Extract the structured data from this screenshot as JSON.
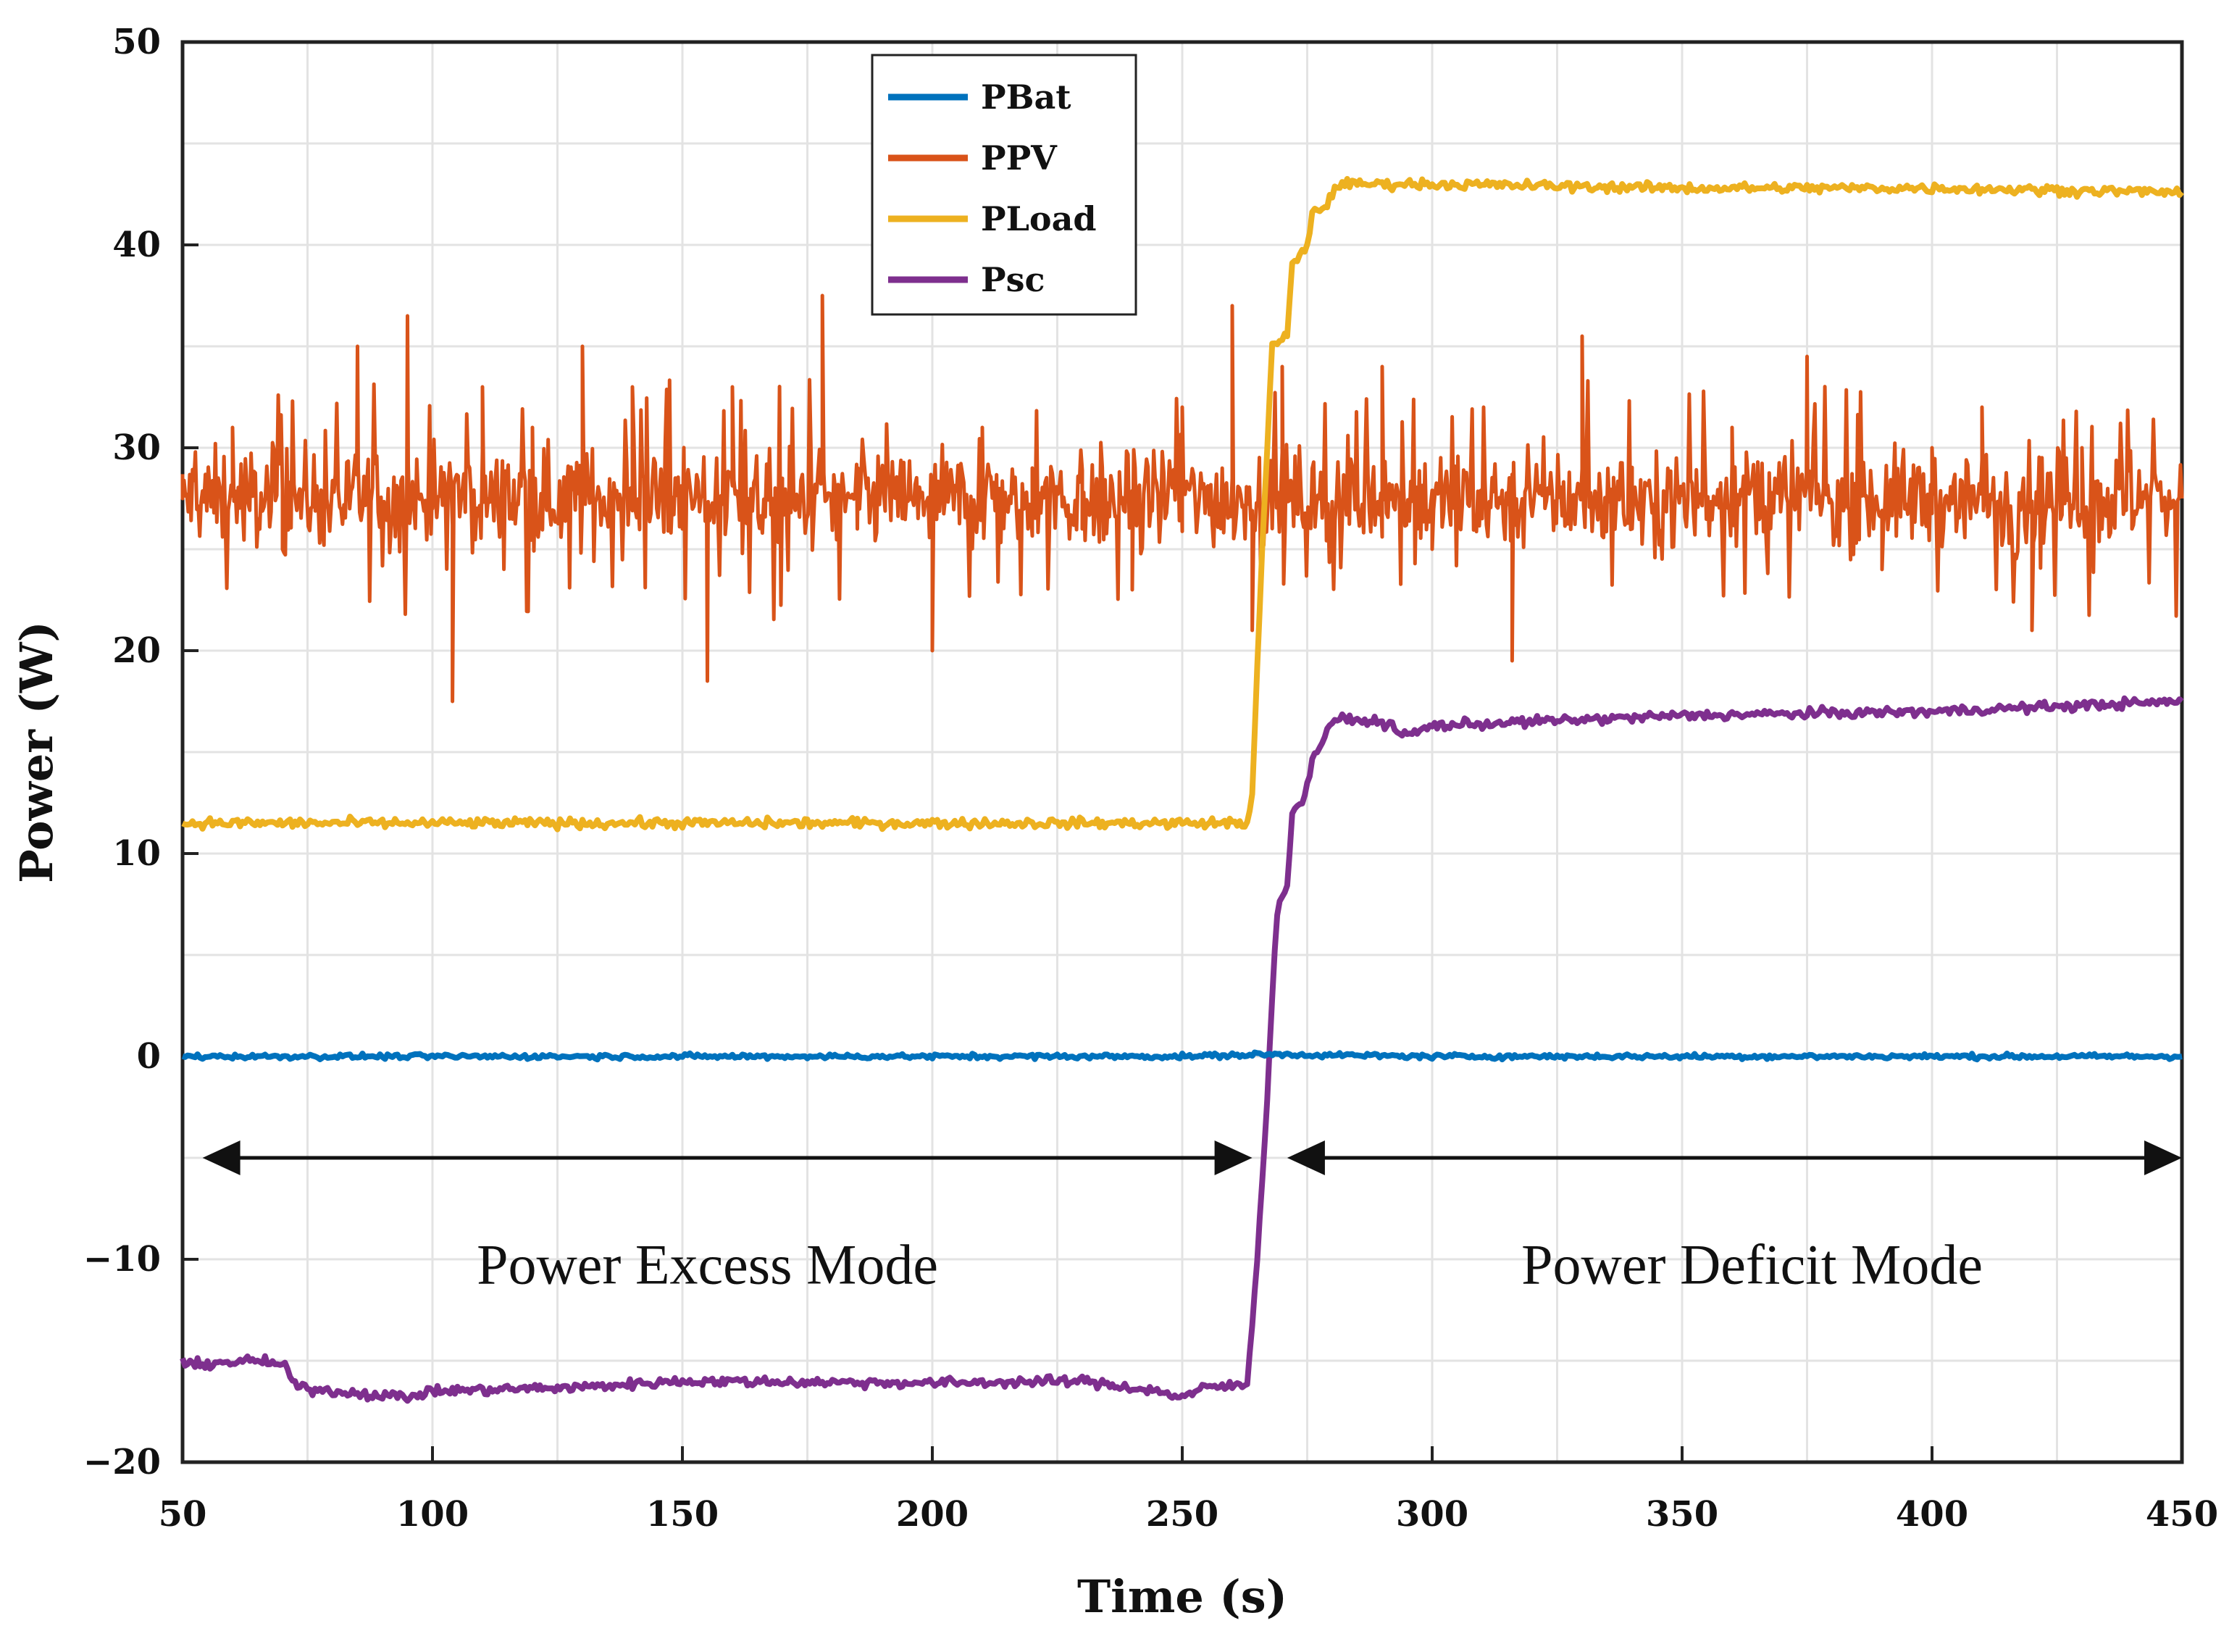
{
  "chart_data": {
    "type": "line",
    "title": "",
    "xlabel": "Time (s)",
    "ylabel": "Power (W)",
    "xlim": [
      50,
      450
    ],
    "ylim": [
      -20,
      50
    ],
    "xticks": [
      50,
      100,
      150,
      200,
      250,
      300,
      350,
      400,
      450
    ],
    "yticks": [
      -20,
      -10,
      0,
      10,
      20,
      30,
      40,
      50
    ],
    "xtick_labels": [
      "50",
      "100",
      "150",
      "200",
      "250",
      "300",
      "350",
      "400",
      "450"
    ],
    "ytick_labels": [
      "−20",
      "−10",
      "0",
      "10",
      "20",
      "30",
      "40",
      "50"
    ],
    "grid": true,
    "legend_position": "top-left-center",
    "series": [
      {
        "name": "PBat",
        "color": "#0072BD",
        "x": [
          50,
          100,
          150,
          200,
          250,
          268,
          300,
          350,
          400,
          450
        ],
        "y": [
          0,
          0,
          0,
          0,
          0,
          0.1,
          0,
          0,
          0,
          0
        ]
      },
      {
        "name": "PPV",
        "color": "#D95319",
        "noisy": true,
        "mean": 27.5,
        "x": [
          50,
          60,
          70,
          85,
          95,
          100,
          104,
          110,
          120,
          130,
          140,
          150,
          155,
          160,
          170,
          178,
          185,
          200,
          210,
          220,
          230,
          240,
          250,
          260,
          264,
          270,
          280,
          290,
          300,
          316,
          330,
          340,
          360,
          375,
          390,
          400,
          410,
          420,
          430,
          440,
          450
        ],
        "y": [
          27.5,
          31,
          25,
          35,
          36.5,
          27,
          17.5,
          33,
          31,
          35,
          33,
          26,
          18.5,
          33,
          28,
          37.5,
          26,
          20,
          31,
          29,
          26,
          23,
          32,
          37,
          21,
          34,
          26,
          34,
          25,
          19.5,
          35.5,
          26,
          31,
          34.5,
          24,
          30,
          32,
          21,
          30,
          26,
          27.5
        ]
      },
      {
        "name": "PLoad",
        "color": "#EDB120",
        "x": [
          50,
          100,
          150,
          200,
          250,
          263,
          264,
          266,
          268,
          271,
          272,
          275,
          276,
          279,
          281,
          300,
          350,
          400,
          450
        ],
        "y": [
          11.5,
          11.5,
          11.5,
          11.5,
          11.5,
          11.5,
          13,
          25,
          35,
          35.5,
          39,
          40,
          41.5,
          42,
          43,
          43,
          42.8,
          42.8,
          42.6
        ]
      },
      {
        "name": "Psc",
        "color": "#7E2F8E",
        "x": [
          50,
          65,
          70,
          73,
          80,
          95,
          100,
          130,
          150,
          200,
          230,
          245,
          250,
          255,
          263,
          265,
          267,
          268,
          269,
          270,
          271,
          272,
          274,
          276,
          280,
          290,
          295,
          300,
          350,
          400,
          450
        ],
        "y": [
          -15.2,
          -15,
          -15.2,
          -16.3,
          -16.5,
          -16.8,
          -16.5,
          -16.3,
          -16,
          -16.1,
          -16,
          -16.5,
          -16.8,
          -16.3,
          -16.2,
          -10,
          -2,
          3,
          7,
          8,
          8.5,
          12,
          12.5,
          14.5,
          16.6,
          16.5,
          15.8,
          16.3,
          16.8,
          17,
          17.5
        ]
      }
    ],
    "legend": [
      "PBat",
      "PPV",
      "PLoad",
      "Psc"
    ],
    "annotations": [
      {
        "text": "Power Excess Mode",
        "arrow_from": 54,
        "arrow_to": 264,
        "label_x": 155,
        "y": -5
      },
      {
        "text": "Power Deficit Mode",
        "arrow_from": 271,
        "arrow_to": 450,
        "label_x": 364,
        "y": -5
      }
    ]
  }
}
